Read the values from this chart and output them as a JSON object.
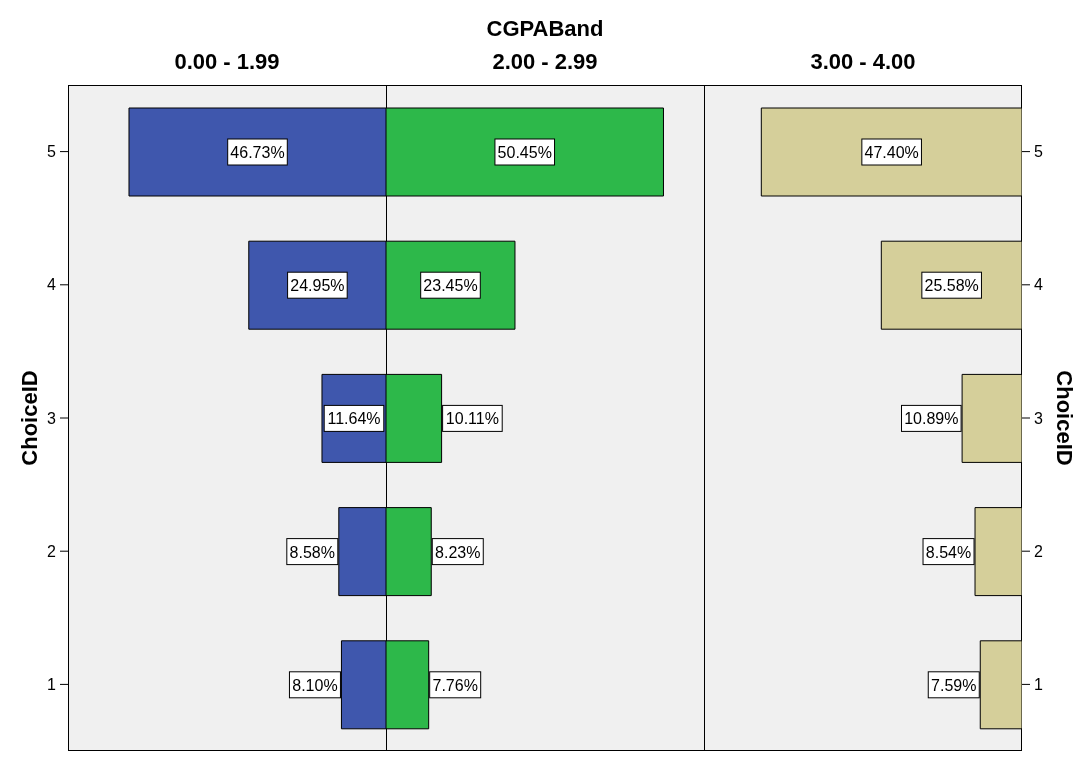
{
  "chart_data": [
    {
      "type": "bar",
      "orientation": "horizontal",
      "title": "0.00 - 1.99",
      "annotations": [
        "CGPABand"
      ],
      "ylabel": "ChoiceID",
      "tick_labels": "y",
      "categories": [
        "5",
        "4",
        "3",
        "2",
        "1"
      ],
      "color": "#3f57ad",
      "values": [
        46.73,
        24.95,
        11.64,
        8.58,
        8.1
      ],
      "value_labels": [
        "46.73%",
        "24.95%",
        "11.64%",
        "8.58%",
        "8.10%"
      ]
    },
    {
      "type": "bar",
      "orientation": "horizontal",
      "title": "2.00 - 2.99",
      "tick_labels": false,
      "categories": [
        "5",
        "4",
        "3",
        "2",
        "1"
      ],
      "color": "#2db84a",
      "values": [
        50.45,
        23.45,
        10.11,
        8.23,
        7.76
      ],
      "value_labels": [
        "50.45%",
        "23.45%",
        "10.11%",
        "8.23%",
        "7.76%"
      ]
    },
    {
      "type": "bar",
      "orientation": "horizontal",
      "title": "3.00 - 4.00",
      "ylabel": "ChoiceID",
      "tick_labels": "y",
      "categories": [
        "5",
        "4",
        "3",
        "2",
        "1"
      ],
      "color": "#d5cf9a",
      "values": [
        47.4,
        25.58,
        10.89,
        8.54,
        7.59
      ],
      "value_labels": [
        "47.40%",
        "25.58%",
        "10.89%",
        "8.54%",
        "7.59%"
      ]
    }
  ]
}
